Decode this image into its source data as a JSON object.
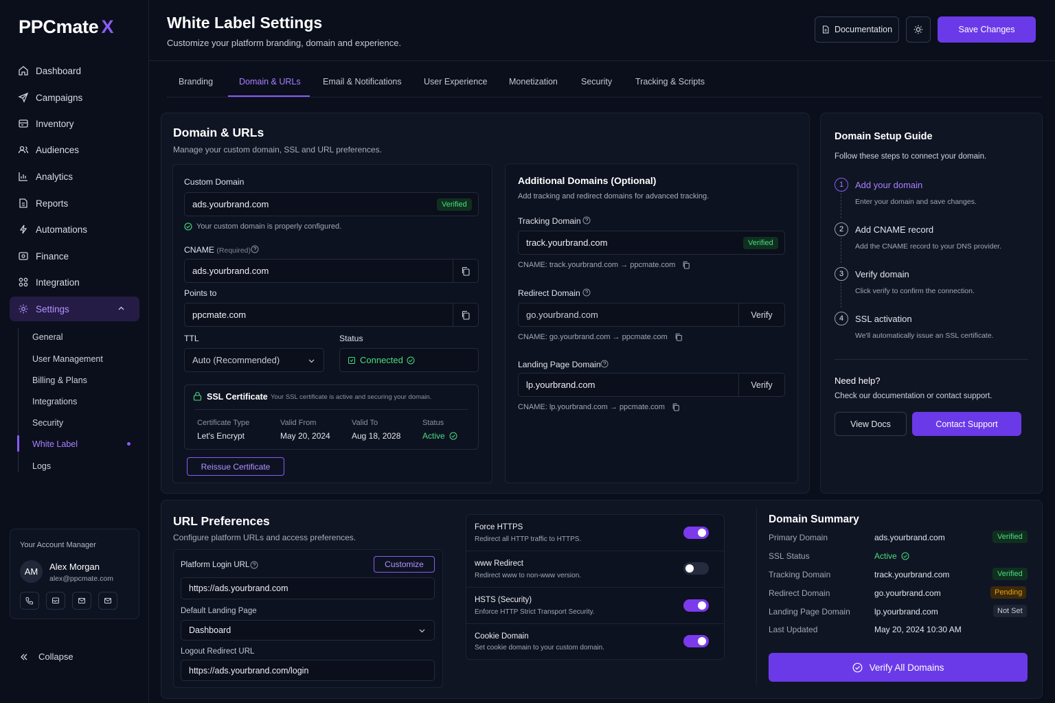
{
  "app": {
    "logo_main": "PPCmate",
    "logo_x": "X",
    "collapse": "Collapse"
  },
  "nav": {
    "dashboard": "Dashboard",
    "campaigns": "Campaigns",
    "inventory": "Inventory",
    "audiences": "Audiences",
    "analytics": "Analytics",
    "reports": "Reports",
    "automations": "Automations",
    "finance": "Finance",
    "integration": "Integration",
    "settings": "Settings",
    "sub": {
      "general": "General",
      "user_management": "User Management",
      "billing": "Billing & Plans",
      "integrations": "Integrations",
      "security": "Security",
      "white_label": "White Label",
      "logs": "Logs"
    }
  },
  "manager": {
    "title": "Your Account Manager",
    "initials": "AM",
    "name": "Alex Morgan",
    "email": "alex@ppcmate.com"
  },
  "header": {
    "title": "White Label Settings",
    "subtitle": "Customize your platform branding, domain and experience.",
    "docs_button": "Documentation",
    "save_button": "Save Changes"
  },
  "tabs": [
    "Branding",
    "Domain & URLs",
    "Email & Notifications",
    "User Experience",
    "Monetization",
    "Security",
    "Tracking & Scripts"
  ],
  "domain": {
    "title": "Domain & URLs",
    "desc": "Manage your custom domain, SSL and URL preferences.",
    "custom_domain_label": "Custom Domain",
    "custom_domain_value": "ads.yourbrand.com",
    "verified": "Verified",
    "configured_msg": "Your custom domain is properly configured.",
    "cname_label": "CNAME",
    "cname_required": "(Required)",
    "cname_value": "ads.yourbrand.com",
    "points_to_label": "Points to",
    "points_to_value": "ppcmate.com",
    "ttl_label": "TTL",
    "ttl_value": "Auto (Recommended)",
    "status_label": "Status",
    "status_value": "Connected",
    "ssl_title": "SSL Certificate",
    "ssl_desc": "Your SSL certificate is active and securing your domain.",
    "cert_type_label": "Certificate Type",
    "cert_type_value": "Let's Encrypt",
    "valid_from_label": "Valid From",
    "valid_from_value": "May 20, 2024",
    "valid_to_label": "Valid To",
    "valid_to_value": "Aug 18, 2028",
    "cert_status_label": "Status",
    "cert_status_value": "Active",
    "reissue": "Reissue Certificate"
  },
  "additional": {
    "title": "Additional Domains (Optional)",
    "desc": "Add tracking and redirect domains for advanced tracking.",
    "tracking_label": "Tracking Domain",
    "tracking_value": "track.yourbrand.com",
    "tracking_badge": "Verified",
    "tracking_cname": "CNAME:  track.yourbrand.com → ppcmate.com",
    "redirect_label": "Redirect Domain",
    "redirect_value": "go.yourbrand.com",
    "redirect_cname": "CNAME:  go.yourbrand.com → ppcmate.com",
    "landing_label": "Landing Page Domain",
    "landing_value": "lp.yourbrand.com",
    "landing_cname": "CNAME:  lp.yourbrand.com → ppcmate.com",
    "verify": "Verify"
  },
  "guide": {
    "title": "Domain Setup Guide",
    "desc": "Follow these steps to connect your domain.",
    "steps": [
      {
        "num": "1",
        "title": "Add your domain",
        "desc": "Enter your domain and save changes."
      },
      {
        "num": "2",
        "title": "Add CNAME record",
        "desc": "Add the CNAME record to your DNS provider."
      },
      {
        "num": "3",
        "title": "Verify domain",
        "desc": "Click verify to confirm the connection."
      },
      {
        "num": "4",
        "title": "SSL activation",
        "desc": "We'll automatically issue an SSL certificate."
      }
    ],
    "help_title": "Need help?",
    "help_desc": "Check our documentation or contact support.",
    "view_docs": "View Docs",
    "contact": "Contact Support"
  },
  "url_prefs": {
    "title": "URL Preferences",
    "desc": "Configure platform URLs and access preferences.",
    "login_label": "Platform Login URL",
    "customize": "Customize",
    "login_value": "https://ads.yourbrand.com",
    "landing_label": "Default Landing Page",
    "landing_value": "Dashboard",
    "logout_label": "Logout Redirect URL",
    "logout_value": "https://ads.yourbrand.com/login"
  },
  "toggles": [
    {
      "title": "Force HTTPS",
      "desc": "Redirect all HTTP traffic to HTTPS.",
      "on": true
    },
    {
      "title": "www Redirect",
      "desc": "Redirect www to non-www version.",
      "on": false
    },
    {
      "title": "HSTS (Security)",
      "desc": "Enforce HTTP Strict Transport Security.",
      "on": true
    },
    {
      "title": "Cookie Domain",
      "desc": "Set cookie domain to your custom domain.",
      "on": true
    }
  ],
  "summary": {
    "title": "Domain Summary",
    "rows": [
      {
        "label": "Primary Domain",
        "value": "ads.yourbrand.com",
        "badge": "Verified"
      },
      {
        "label": "SSL Status",
        "value": "Active",
        "badge": ""
      },
      {
        "label": "Tracking Domain",
        "value": "track.yourbrand.com",
        "badge": "Verified"
      },
      {
        "label": "Redirect Domain",
        "value": "go.yourbrand.com",
        "badge": "Pending"
      },
      {
        "label": "Landing Page Domain",
        "value": "lp.yourbrand.com",
        "badge": "Not Set"
      },
      {
        "label": "Last Updated",
        "value": "May 20, 2024 10:30 AM",
        "badge": ""
      }
    ],
    "verify_all": "Verify All Domains"
  },
  "colors": {
    "accent": "#7c3aed",
    "success": "#4ade80",
    "pending": "#f59e0b"
  }
}
